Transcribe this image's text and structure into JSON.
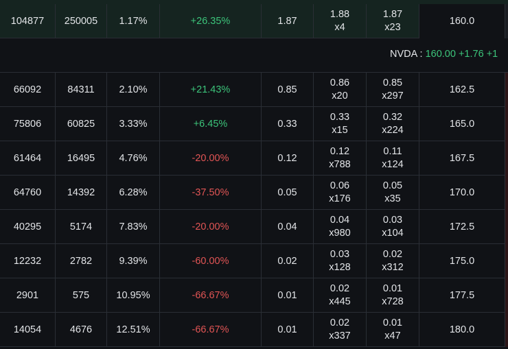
{
  "rows_top": [
    {
      "c1": "104877",
      "c2": "250005",
      "c3": "1.17%",
      "c4": "+26.35%",
      "c4_sign": "pos",
      "c5": "1.87",
      "c6a": "1.88",
      "c6b": "x4",
      "c7a": "1.87",
      "c7b": "x23",
      "c8": "160.0"
    }
  ],
  "ticker": {
    "symbol": "NVDA : ",
    "price": "160.00",
    "change": "+1.76",
    "pct": "+1"
  },
  "rows": [
    {
      "c1": "66092",
      "c2": "84311",
      "c3": "2.10%",
      "c4": "+21.43%",
      "c4_sign": "pos",
      "c5": "0.85",
      "c6a": "0.86",
      "c6b": "x20",
      "c7a": "0.85",
      "c7b": "x297",
      "c8": "162.5"
    },
    {
      "c1": "75806",
      "c2": "60825",
      "c3": "3.33%",
      "c4": "+6.45%",
      "c4_sign": "pos",
      "c5": "0.33",
      "c6a": "0.33",
      "c6b": "x15",
      "c7a": "0.32",
      "c7b": "x224",
      "c8": "165.0"
    },
    {
      "c1": "61464",
      "c2": "16495",
      "c3": "4.76%",
      "c4": "-20.00%",
      "c4_sign": "neg",
      "c5": "0.12",
      "c6a": "0.12",
      "c6b": "x788",
      "c7a": "0.11",
      "c7b": "x124",
      "c8": "167.5"
    },
    {
      "c1": "64760",
      "c2": "14392",
      "c3": "6.28%",
      "c4": "-37.50%",
      "c4_sign": "neg",
      "c5": "0.05",
      "c6a": "0.06",
      "c6b": "x176",
      "c7a": "0.05",
      "c7b": "x35",
      "c8": "170.0"
    },
    {
      "c1": "40295",
      "c2": "5174",
      "c3": "7.83%",
      "c4": "-20.00%",
      "c4_sign": "neg",
      "c5": "0.04",
      "c6a": "0.04",
      "c6b": "x980",
      "c7a": "0.03",
      "c7b": "x104",
      "c8": "172.5"
    },
    {
      "c1": "12232",
      "c2": "2782",
      "c3": "9.39%",
      "c4": "-60.00%",
      "c4_sign": "neg",
      "c5": "0.02",
      "c6a": "0.03",
      "c6b": "x128",
      "c7a": "0.02",
      "c7b": "x312",
      "c8": "175.0"
    },
    {
      "c1": "2901",
      "c2": "575",
      "c3": "10.95%",
      "c4": "-66.67%",
      "c4_sign": "neg",
      "c5": "0.01",
      "c6a": "0.02",
      "c6b": "x445",
      "c7a": "0.01",
      "c7b": "x728",
      "c8": "177.5"
    },
    {
      "c1": "14054",
      "c2": "4676",
      "c3": "12.51%",
      "c4": "-66.67%",
      "c4_sign": "neg",
      "c5": "0.01",
      "c6a": "0.02",
      "c6b": "x337",
      "c7a": "0.01",
      "c7b": "x47",
      "c8": "180.0"
    }
  ],
  "colors": {
    "positive": "#3cc47a",
    "negative": "#e25555",
    "itm_background": "#152420"
  }
}
